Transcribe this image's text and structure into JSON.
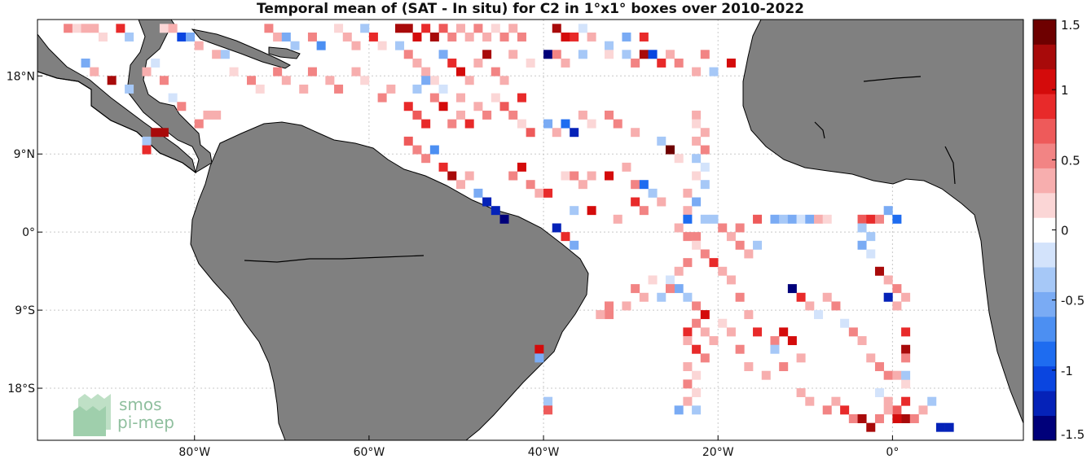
{
  "title": "Temporal mean of (SAT - In situ) for C2 in 1°x1° boxes over 2010-2022",
  "colors": {
    "land": "#808080",
    "coast": "#000000",
    "grid": "#c8c8c8",
    "colormap": [
      "#00007a",
      "#0522b8",
      "#0a45e0",
      "#1e6cf0",
      "#4c8ff2",
      "#7aabf4",
      "#a6c8f7",
      "#d3e3fb",
      "#ffffff",
      "#fbd6d6",
      "#f7aeae",
      "#f28484",
      "#ee5a5a",
      "#e82a2a",
      "#d40b0b",
      "#a80a0a",
      "#6e0000"
    ]
  },
  "map": {
    "lon_range": [
      -98,
      15
    ],
    "lat_range": [
      -24,
      24.5
    ],
    "x_ticks": [
      {
        "value": -80,
        "label": "80°W"
      },
      {
        "value": -60,
        "label": "60°W"
      },
      {
        "value": -40,
        "label": "40°W"
      },
      {
        "value": -20,
        "label": "20°W"
      },
      {
        "value": 0,
        "label": "0°"
      }
    ],
    "y_ticks": [
      {
        "value": 18,
        "label": "18°N"
      },
      {
        "value": 9,
        "label": "9°N"
      },
      {
        "value": 0,
        "label": "0°"
      },
      {
        "value": -9,
        "label": "9°S"
      },
      {
        "value": -18,
        "label": "18°S"
      }
    ]
  },
  "colorbar": {
    "range": [
      -1.5,
      1.5
    ],
    "ticks": [
      {
        "value": 1.5,
        "label": "1.5"
      },
      {
        "value": 1,
        "label": "1"
      },
      {
        "value": 0.5,
        "label": "0.5"
      },
      {
        "value": 0,
        "label": "0"
      },
      {
        "value": -0.5,
        "label": "-0.5"
      },
      {
        "value": -1,
        "label": "-1"
      },
      {
        "value": -1.5,
        "label": "-1.5"
      }
    ]
  },
  "logo": {
    "line1": "smos",
    "line2": "pi-mep"
  },
  "cells": [
    [
      -95,
      23,
      0.5
    ],
    [
      -94,
      23,
      0.2
    ],
    [
      -93,
      23,
      0.3
    ],
    [
      -92,
      23,
      0.4
    ],
    [
      -91,
      22,
      0.2
    ],
    [
      -89,
      23,
      0.8
    ],
    [
      -88,
      22,
      -0.3
    ],
    [
      -84,
      23,
      0.2
    ],
    [
      -83,
      23,
      0.3
    ],
    [
      -82,
      22,
      -1.0
    ],
    [
      -81,
      22,
      -0.5
    ],
    [
      -80,
      21,
      0.3
    ],
    [
      -78,
      20,
      0.4
    ],
    [
      -72,
      23,
      0.5
    ],
    [
      -71,
      22,
      0.3
    ],
    [
      -70,
      22,
      -0.6
    ],
    [
      -69,
      21,
      -0.4
    ],
    [
      -67,
      22,
      0.5
    ],
    [
      -66,
      21,
      -0.7
    ],
    [
      -64,
      23,
      0.2
    ],
    [
      -63,
      22,
      0.3
    ],
    [
      -62,
      21,
      0.4
    ],
    [
      -61,
      23,
      -0.4
    ],
    [
      -60,
      22,
      0.9
    ],
    [
      -59,
      21,
      0.2
    ],
    [
      -57,
      23,
      1.2
    ],
    [
      -56,
      23,
      1.3
    ],
    [
      -55,
      22,
      1.1
    ],
    [
      -54,
      23,
      0.9
    ],
    [
      -53,
      22,
      1.3
    ],
    [
      -52,
      23,
      0.7
    ],
    [
      -51,
      22,
      0.5
    ],
    [
      -50,
      23,
      0.4
    ],
    [
      -49,
      22,
      0.3
    ],
    [
      -48,
      23,
      0.6
    ],
    [
      -47,
      22,
      0.4
    ],
    [
      -46,
      23,
      0.2
    ],
    [
      -45,
      22,
      0.5
    ],
    [
      -44,
      23,
      0.3
    ],
    [
      -43,
      22,
      0.6
    ],
    [
      -39,
      23,
      1.2
    ],
    [
      -38,
      22,
      1.1
    ],
    [
      -37,
      22,
      0.8
    ],
    [
      -36,
      23,
      -0.2
    ],
    [
      -35,
      22,
      0.3
    ],
    [
      -33,
      21,
      -0.4
    ],
    [
      -31,
      22,
      -0.5
    ],
    [
      -29,
      22,
      0.9
    ],
    [
      -57,
      21,
      -0.3
    ],
    [
      -56,
      20,
      0.6
    ],
    [
      -55,
      19,
      0.4
    ],
    [
      -54,
      18,
      0.3
    ],
    [
      -53,
      17,
      0.2
    ],
    [
      -52,
      20,
      -0.5
    ],
    [
      -51,
      19,
      0.8
    ],
    [
      -50,
      18,
      1.0
    ],
    [
      -49,
      17,
      0.4
    ],
    [
      -48,
      19,
      0.3
    ],
    [
      -47,
      20,
      1.2
    ],
    [
      -46,
      18,
      0.6
    ],
    [
      -45,
      17,
      0.3
    ],
    [
      -44,
      20,
      0.4
    ],
    [
      -42,
      19,
      0.2
    ],
    [
      -40,
      20,
      -1.4
    ],
    [
      -39,
      20,
      0.5
    ],
    [
      -38,
      19,
      0.3
    ],
    [
      -36,
      20,
      -0.3
    ],
    [
      -33,
      20,
      0.2
    ],
    [
      -31,
      20,
      -0.4
    ],
    [
      -30,
      19,
      0.5
    ],
    [
      -29,
      20,
      1.3
    ],
    [
      -28,
      20,
      -1.0
    ],
    [
      -27,
      19,
      0.8
    ],
    [
      -26,
      20,
      0.4
    ],
    [
      -25,
      19,
      0.6
    ],
    [
      -23,
      18,
      0.3
    ],
    [
      -22,
      20,
      0.5
    ],
    [
      -21,
      18,
      -0.3
    ],
    [
      -19,
      19,
      1.0
    ],
    [
      -93,
      19,
      -0.6
    ],
    [
      -92,
      18,
      0.4
    ],
    [
      -90,
      17,
      1.2
    ],
    [
      -88,
      16,
      -0.4
    ],
    [
      -86,
      18,
      0.3
    ],
    [
      -85,
      19,
      -0.2
    ],
    [
      -84,
      17,
      0.5
    ],
    [
      -83,
      15,
      -0.2
    ],
    [
      -82,
      14,
      0.6
    ],
    [
      -79,
      13,
      0.4
    ],
    [
      -77,
      20,
      -0.3
    ],
    [
      -76,
      18,
      0.2
    ],
    [
      -74,
      17,
      0.5
    ],
    [
      -73,
      16,
      0.2
    ],
    [
      -71,
      18,
      0.6
    ],
    [
      -70,
      17,
      0.3
    ],
    [
      -68,
      16,
      0.4
    ],
    [
      -67,
      18,
      0.6
    ],
    [
      -65,
      17,
      0.3
    ],
    [
      -64,
      16,
      0.5
    ],
    [
      -62,
      18,
      0.4
    ],
    [
      -61,
      17,
      0.2
    ],
    [
      -59,
      15,
      0.5
    ],
    [
      -58,
      16,
      0.3
    ],
    [
      -56,
      14,
      0.9
    ],
    [
      -55,
      13,
      0.7
    ],
    [
      -54,
      12,
      0.8
    ],
    [
      -53,
      15,
      0.5
    ],
    [
      -52,
      14,
      1.0
    ],
    [
      -51,
      12,
      0.6
    ],
    [
      -50,
      13,
      0.4
    ],
    [
      -49,
      12,
      0.9
    ],
    [
      -48,
      14,
      0.3
    ],
    [
      -47,
      13,
      0.5
    ],
    [
      -46,
      15,
      0.2
    ],
    [
      -45,
      14,
      0.7
    ],
    [
      -44,
      13,
      0.5
    ],
    [
      -43,
      15,
      0.8
    ],
    [
      -55,
      16,
      -0.3
    ],
    [
      -54,
      17,
      -0.5
    ],
    [
      -52,
      16,
      -0.2
    ],
    [
      -50,
      15,
      0.3
    ],
    [
      -85,
      11,
      1.3
    ],
    [
      -84,
      11,
      1.3
    ],
    [
      -86,
      10,
      -0.4
    ],
    [
      -86,
      9,
      0.8
    ],
    [
      -80,
      12,
      0.6
    ],
    [
      -78,
      13,
      0.4
    ],
    [
      -56,
      10,
      0.7
    ],
    [
      -55,
      9,
      0.5
    ],
    [
      -54,
      8,
      0.6
    ],
    [
      -53,
      9,
      -0.7
    ],
    [
      -52,
      7,
      0.8
    ],
    [
      -51,
      6,
      1.2
    ],
    [
      -50,
      5,
      0.4
    ],
    [
      -49,
      6,
      0.3
    ],
    [
      -48,
      4,
      -0.5
    ],
    [
      -47,
      3,
      -1.3
    ],
    [
      -46,
      2,
      -1.3
    ],
    [
      -45,
      1,
      -1.4
    ],
    [
      -44,
      6,
      0.5
    ],
    [
      -43,
      7,
      1.0
    ],
    [
      -42,
      5,
      0.6
    ],
    [
      -41,
      4,
      0.4
    ],
    [
      -40,
      4,
      0.9
    ],
    [
      -38,
      6,
      0.2
    ],
    [
      -37,
      6,
      0.5
    ],
    [
      -36,
      5,
      0.3
    ],
    [
      -35,
      6,
      0.4
    ],
    [
      -33,
      6,
      1.0
    ],
    [
      -31,
      7,
      0.3
    ],
    [
      -30,
      5,
      0.5
    ],
    [
      -29,
      5,
      -0.9
    ],
    [
      -28,
      4,
      -0.4
    ],
    [
      -27,
      3,
      0.3
    ],
    [
      -30,
      3,
      0.8
    ],
    [
      -29,
      2,
      0.6
    ],
    [
      -32,
      1,
      0.3
    ],
    [
      -35,
      2,
      1.0
    ],
    [
      -37,
      2,
      -0.3
    ],
    [
      -39,
      0,
      -1.3
    ],
    [
      -38,
      -1,
      0.9
    ],
    [
      -37,
      -2,
      -0.5
    ],
    [
      -43,
      12,
      0.2
    ],
    [
      -42,
      11,
      0.7
    ],
    [
      -40,
      12,
      -0.5
    ],
    [
      -39,
      11,
      0.3
    ],
    [
      -38,
      12,
      -0.8
    ],
    [
      -37,
      11,
      -1.3
    ],
    [
      -36,
      13,
      0.4
    ],
    [
      -35,
      12,
      0.2
    ],
    [
      -33,
      13,
      0.6
    ],
    [
      -32,
      12,
      0.5
    ],
    [
      -30,
      11,
      0.3
    ],
    [
      -27,
      10,
      -0.4
    ],
    [
      -26,
      9,
      1.4
    ],
    [
      -25,
      8,
      0.2
    ],
    [
      -23,
      13,
      0.3
    ],
    [
      -23,
      12,
      0.2
    ],
    [
      -22,
      11,
      0.4
    ],
    [
      -23,
      10,
      0.3
    ],
    [
      -22,
      9,
      0.5
    ],
    [
      -23,
      8,
      -0.3
    ],
    [
      -22,
      7,
      -0.2
    ],
    [
      -23,
      6,
      0.2
    ],
    [
      -22,
      5,
      -0.3
    ],
    [
      -24,
      4,
      0.4
    ],
    [
      -23,
      3,
      -0.5
    ],
    [
      -24,
      2,
      0.3
    ],
    [
      -24,
      1,
      -0.8
    ],
    [
      -25,
      0,
      0.4
    ],
    [
      -24,
      -1,
      0.6
    ],
    [
      -23,
      -1,
      0.5
    ],
    [
      -22,
      1,
      -0.4
    ],
    [
      -21,
      1,
      -0.3
    ],
    [
      -20,
      0,
      0.5
    ],
    [
      -19,
      -1,
      0.3
    ],
    [
      -18,
      -2,
      0.6
    ],
    [
      -17,
      -3,
      0.4
    ],
    [
      -23,
      -2,
      0.2
    ],
    [
      -22,
      -3,
      0.6
    ],
    [
      -21,
      -4,
      0.9
    ],
    [
      -20,
      -5,
      0.4
    ],
    [
      -19,
      -6,
      0.3
    ],
    [
      -24,
      -4,
      0.5
    ],
    [
      -25,
      -5,
      0.3
    ],
    [
      -26,
      -6,
      -0.2
    ],
    [
      -25,
      -7,
      -0.5
    ],
    [
      -24,
      -8,
      -0.3
    ],
    [
      -23,
      -9,
      0.5
    ],
    [
      -22,
      -10,
      1.0
    ],
    [
      -23,
      -11,
      0.6
    ],
    [
      -22,
      -12,
      0.3
    ],
    [
      -24,
      -12,
      0.8
    ],
    [
      -24,
      -13,
      0.4
    ],
    [
      -23,
      -14,
      0.9
    ],
    [
      -22,
      -15,
      0.6
    ],
    [
      -21,
      -13,
      0.4
    ],
    [
      -20,
      -11,
      0.2
    ],
    [
      -19,
      -12,
      0.3
    ],
    [
      -18,
      -14,
      0.5
    ],
    [
      -17,
      -16,
      0.4
    ],
    [
      -26,
      -7,
      0.5
    ],
    [
      -27,
      -8,
      -0.4
    ],
    [
      -28,
      -6,
      0.2
    ],
    [
      -29,
      -8,
      0.3
    ],
    [
      -30,
      -7,
      0.6
    ],
    [
      -31,
      -9,
      0.4
    ],
    [
      -24,
      -16,
      0.3
    ],
    [
      -23,
      -17,
      0.2
    ],
    [
      -24,
      -18,
      0.5
    ],
    [
      -23,
      -19,
      0.2
    ],
    [
      -24,
      -20,
      0.3
    ],
    [
      -23,
      -21,
      -0.4
    ],
    [
      -16,
      -2,
      -0.3
    ],
    [
      -18,
      -8,
      0.5
    ],
    [
      -17,
      -10,
      0.4
    ],
    [
      -16,
      -12,
      0.9
    ],
    [
      -14,
      -13,
      0.6
    ],
    [
      -13,
      -12,
      1.0
    ],
    [
      -12,
      -13,
      1.1
    ],
    [
      -11,
      -15,
      0.4
    ],
    [
      -13,
      -16,
      0.6
    ],
    [
      -15,
      -17,
      0.3
    ],
    [
      -14,
      -14,
      -0.4
    ],
    [
      -12,
      -7,
      -1.4
    ],
    [
      -11,
      -8,
      0.9
    ],
    [
      -10,
      -9,
      0.3
    ],
    [
      -9,
      -10,
      -0.2
    ],
    [
      -8,
      -8,
      0.4
    ],
    [
      -7,
      -9,
      0.6
    ],
    [
      -6,
      -11,
      -0.2
    ],
    [
      -5,
      -12,
      0.5
    ],
    [
      -4,
      -13,
      0.4
    ],
    [
      -3,
      -15,
      0.3
    ],
    [
      -2,
      -16,
      0.6
    ],
    [
      -1,
      -17,
      0.5
    ],
    [
      0,
      -17,
      0.3
    ],
    [
      1,
      -18,
      0.2
    ],
    [
      -2,
      -19,
      -0.2
    ],
    [
      -1,
      -20,
      0.4
    ],
    [
      0,
      -21,
      0.7
    ],
    [
      1,
      -22,
      1.2
    ],
    [
      2,
      -22,
      0.5
    ],
    [
      3,
      -21,
      0.3
    ],
    [
      4,
      -20,
      -0.3
    ],
    [
      5,
      -23,
      -1.3
    ],
    [
      6,
      -23,
      -1.3
    ],
    [
      1,
      -20,
      0.9
    ],
    [
      -11,
      -19,
      0.4
    ],
    [
      -10,
      -20,
      0.3
    ],
    [
      -8,
      -21,
      0.5
    ],
    [
      -7,
      -20,
      0.3
    ],
    [
      -6,
      -21,
      0.8
    ],
    [
      -5,
      -22,
      0.6
    ],
    [
      -4,
      -22,
      1.2
    ],
    [
      -3,
      -23,
      1.3
    ],
    [
      -2,
      -22,
      0.5
    ],
    [
      -1,
      -21,
      0.4
    ],
    [
      0,
      -22,
      1.0
    ],
    [
      -18,
      0,
      0.5
    ],
    [
      -16,
      1,
      0.7
    ],
    [
      -14,
      1,
      -0.5
    ],
    [
      -13,
      1,
      -0.3
    ],
    [
      -12,
      1,
      -0.6
    ],
    [
      -11,
      1,
      -0.2
    ],
    [
      -10,
      1,
      -0.5
    ],
    [
      -9,
      1,
      0.4
    ],
    [
      -8,
      1,
      0.2
    ],
    [
      -4,
      1,
      0.7
    ],
    [
      -3,
      1,
      0.9
    ],
    [
      -2,
      1,
      0.5
    ],
    [
      -1,
      2,
      -0.6
    ],
    [
      0,
      1,
      -0.8
    ],
    [
      -4,
      0,
      -0.3
    ],
    [
      -3,
      -1,
      -0.4
    ],
    [
      -4,
      -2,
      -0.5
    ],
    [
      -3,
      -3,
      -0.2
    ],
    [
      -2,
      -5,
      1.2
    ],
    [
      -1,
      -6,
      0.4
    ],
    [
      0,
      -7,
      0.6
    ],
    [
      1,
      -8,
      0.3
    ],
    [
      -1,
      -8,
      -1.3
    ],
    [
      0,
      -9,
      0.4
    ],
    [
      1,
      -12,
      0.9
    ],
    [
      1,
      -14,
      1.2
    ],
    [
      1,
      -15,
      0.5
    ],
    [
      1,
      -17,
      -0.3
    ],
    [
      -41,
      -14,
      1.0
    ],
    [
      -41,
      -15,
      -0.6
    ],
    [
      -40,
      -20,
      -0.3
    ],
    [
      -40,
      -21,
      0.7
    ],
    [
      -33,
      -9,
      0.5
    ],
    [
      -33,
      -10,
      0.6
    ],
    [
      -34,
      -10,
      0.4
    ],
    [
      -25,
      -21,
      -0.5
    ]
  ]
}
